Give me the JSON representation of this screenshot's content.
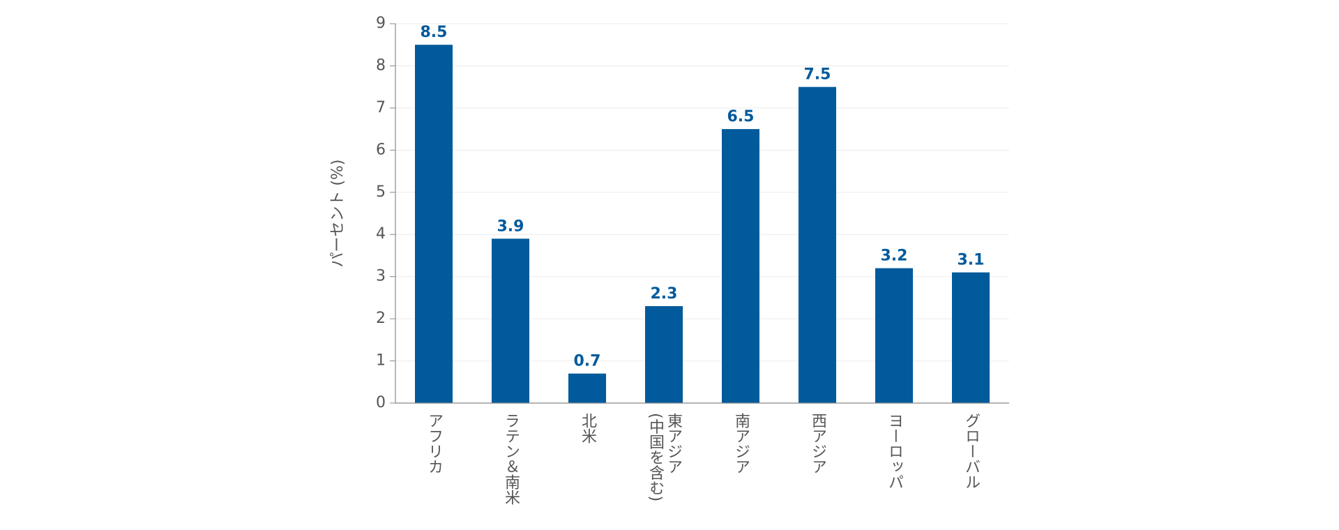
{
  "chart_data": {
    "type": "bar",
    "y_label": "パーセント (%)",
    "categories": [
      "アフリカ",
      "ラテン＆南米",
      "北米",
      "東アジア\n(中国を含む)",
      "南アジア",
      "西アジア",
      "ヨーロッパ",
      "グローバル"
    ],
    "values": [
      8.5,
      3.9,
      0.7,
      2.3,
      6.5,
      7.5,
      3.2,
      3.1
    ],
    "color": "#005a9c",
    "ylim": [
      0,
      9
    ],
    "yticks": [
      0,
      1,
      2,
      3,
      4,
      5,
      6,
      7,
      8,
      9
    ],
    "grid": true
  }
}
